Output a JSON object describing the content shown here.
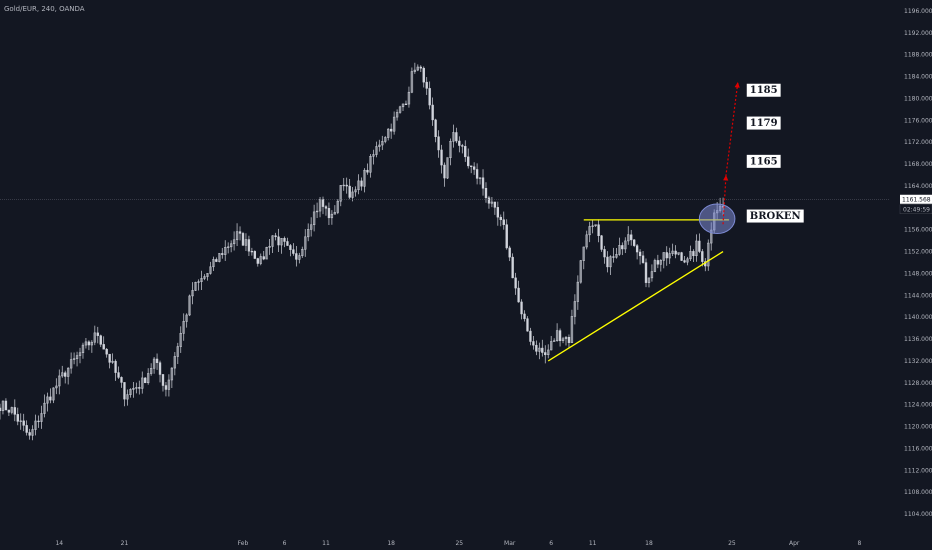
{
  "header": {
    "symbol_label": "Gold/EUR, 240, OANDA"
  },
  "colors": {
    "background": "#131722",
    "candle": "#d1d4dc",
    "trendline": "#ffff00",
    "projection": "#e00000",
    "highlight": "#7e8bd4",
    "axis_text": "#b2b5be",
    "label_bg": "#ffffff"
  },
  "chart_data": {
    "type": "candlestick",
    "y_axis": {
      "min": 1100,
      "max": 1198,
      "ticks": [
        1104,
        1108,
        1112,
        1116,
        1120,
        1124,
        1128,
        1132,
        1136,
        1140,
        1144,
        1148,
        1152,
        1156,
        1160,
        1164,
        1168,
        1172,
        1176,
        1180,
        1184,
        1188,
        1192,
        1196
      ]
    },
    "x_axis": {
      "min_index": 0,
      "max_index": 300,
      "ticks": [
        {
          "label": "14",
          "i": 20
        },
        {
          "label": "21",
          "i": 42
        },
        {
          "label": "Feb",
          "i": 82
        },
        {
          "label": "6",
          "i": 96
        },
        {
          "label": "11",
          "i": 110
        },
        {
          "label": "18",
          "i": 132
        },
        {
          "label": "25",
          "i": 155
        },
        {
          "label": "Mar",
          "i": 172
        },
        {
          "label": "6",
          "i": 186
        },
        {
          "label": "11",
          "i": 200
        },
        {
          "label": "18",
          "i": 219
        },
        {
          "label": "25",
          "i": 247
        },
        {
          "label": "Apr",
          "i": 268
        },
        {
          "label": "8",
          "i": 290
        }
      ]
    },
    "anchors": [
      [
        0,
        1124
      ],
      [
        4,
        1123
      ],
      [
        10,
        1118
      ],
      [
        16,
        1125
      ],
      [
        22,
        1130
      ],
      [
        28,
        1134
      ],
      [
        33,
        1137
      ],
      [
        38,
        1131
      ],
      [
        42,
        1126
      ],
      [
        48,
        1128
      ],
      [
        52,
        1132
      ],
      [
        56,
        1127
      ],
      [
        60,
        1135
      ],
      [
        65,
        1145
      ],
      [
        70,
        1148
      ],
      [
        75,
        1152
      ],
      [
        80,
        1155
      ],
      [
        84,
        1153
      ],
      [
        88,
        1150
      ],
      [
        92,
        1155
      ],
      [
        96,
        1153
      ],
      [
        100,
        1150
      ],
      [
        104,
        1157
      ],
      [
        108,
        1161
      ],
      [
        112,
        1158
      ],
      [
        116,
        1165
      ],
      [
        119,
        1162
      ],
      [
        123,
        1166
      ],
      [
        128,
        1172
      ],
      [
        132,
        1175
      ],
      [
        137,
        1180
      ],
      [
        140,
        1186
      ],
      [
        143,
        1184
      ],
      [
        147,
        1172
      ],
      [
        150,
        1166
      ],
      [
        153,
        1174
      ],
      [
        158,
        1168
      ],
      [
        162,
        1165
      ],
      [
        166,
        1160
      ],
      [
        170,
        1156
      ],
      [
        173,
        1148
      ],
      [
        176,
        1140
      ],
      [
        180,
        1135
      ],
      [
        184,
        1133
      ],
      [
        188,
        1137
      ],
      [
        192,
        1136
      ],
      [
        195,
        1147
      ],
      [
        198,
        1156
      ],
      [
        201,
        1156
      ],
      [
        204,
        1150
      ],
      [
        208,
        1151
      ],
      [
        212,
        1156
      ],
      [
        215,
        1153
      ],
      [
        218,
        1147
      ],
      [
        221,
        1150
      ],
      [
        225,
        1151
      ],
      [
        229,
        1152
      ],
      [
        232,
        1150
      ],
      [
        235,
        1153
      ],
      [
        238,
        1150
      ],
      [
        241,
        1160
      ],
      [
        244,
        1160
      ]
    ],
    "last_index": 244,
    "current_price": "1161.568",
    "countdown": "02:49:59",
    "annotations": [
      {
        "label": "1185",
        "i": 252,
        "price": 1181.5
      },
      {
        "label": "1179",
        "i": 252,
        "price": 1175.5
      },
      {
        "label": "1165",
        "i": 252,
        "price": 1168.5
      },
      {
        "label": "BROKEN",
        "i": 252,
        "price": 1158.5
      }
    ],
    "lines": {
      "resistance": {
        "from": [
          197,
          1157.8
        ],
        "to": [
          246,
          1157.8
        ]
      },
      "support": {
        "from": [
          185,
          1132
        ],
        "to": [
          244,
          1152
        ]
      },
      "projection": [
        [
          244,
          1157
        ],
        [
          245,
          1166
        ],
        [
          249,
          1183
        ]
      ]
    },
    "highlight_ellipse": {
      "cx_index": 242,
      "cy_price": 1158,
      "rx_index": 6,
      "ry_price": 2.7
    }
  }
}
